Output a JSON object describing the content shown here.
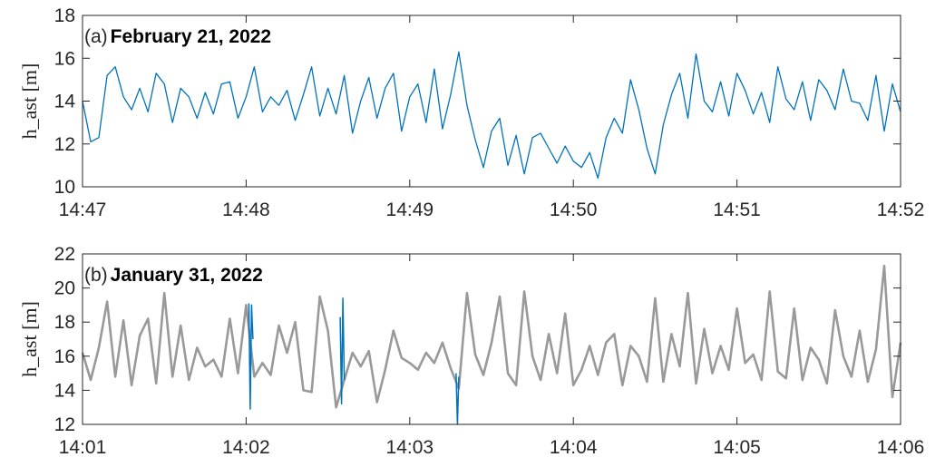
{
  "chart_data": [
    {
      "type": "line",
      "panel_label": "(a)",
      "title": "February 21, 2022",
      "y_label": "h_ast [m]",
      "x": [
        0,
        3,
        6,
        9,
        12,
        15,
        18,
        21,
        24,
        27,
        30,
        33,
        36,
        39,
        42,
        45,
        48,
        51,
        54,
        57,
        60,
        63,
        66,
        69,
        72,
        75,
        78,
        81,
        84,
        87,
        90,
        93,
        96,
        99,
        102,
        105,
        108,
        111,
        114,
        117,
        120,
        123,
        126,
        129,
        132,
        135,
        138,
        141,
        144,
        147,
        150,
        153,
        156,
        159,
        162,
        165,
        168,
        171,
        174,
        177,
        180,
        183,
        186,
        189,
        192,
        195,
        198,
        201,
        204,
        207,
        210,
        213,
        216,
        219,
        222,
        225,
        228,
        231,
        234,
        237,
        240,
        243,
        246,
        249,
        252,
        255,
        258,
        261,
        264,
        267,
        270,
        273,
        276,
        279,
        282,
        285,
        288,
        291,
        294,
        297,
        300
      ],
      "series": [
        {
          "color": "#0072bd",
          "width": 1.3,
          "values": [
            14.0,
            12.1,
            12.3,
            15.2,
            15.6,
            14.2,
            13.6,
            14.6,
            13.5,
            15.3,
            14.8,
            13.0,
            14.6,
            14.2,
            13.2,
            14.4,
            13.4,
            14.8,
            14.9,
            13.2,
            14.2,
            15.6,
            13.5,
            14.2,
            13.8,
            14.5,
            13.1,
            14.3,
            15.6,
            13.3,
            14.6,
            13.4,
            15.2,
            12.5,
            14.0,
            15.1,
            13.2,
            14.6,
            15.3,
            12.6,
            14.2,
            14.8,
            13.0,
            15.5,
            12.7,
            14.3,
            16.3,
            13.8,
            12.2,
            10.9,
            12.6,
            13.2,
            11.0,
            12.4,
            10.6,
            12.3,
            12.5,
            11.8,
            11.1,
            11.9,
            11.2,
            10.9,
            11.6,
            10.4,
            12.3,
            13.2,
            12.5,
            15.0,
            13.6,
            11.8,
            10.6,
            12.9,
            14.3,
            15.3,
            13.2,
            16.2,
            14.0,
            13.5,
            14.9,
            13.3,
            15.3,
            14.5,
            13.4,
            14.4,
            13.0,
            15.6,
            14.1,
            13.6,
            14.9,
            13.1,
            15.0,
            14.5,
            13.6,
            15.5,
            14.0,
            13.9,
            13.1,
            15.2,
            12.6,
            14.8,
            13.5
          ]
        }
      ],
      "xlim": [
        0,
        300
      ],
      "xticks": [
        {
          "value": 0,
          "label": "14:47"
        },
        {
          "value": 60,
          "label": "14:48"
        },
        {
          "value": 120,
          "label": "14:49"
        },
        {
          "value": 180,
          "label": "14:50"
        },
        {
          "value": 240,
          "label": "14:51"
        },
        {
          "value": 300,
          "label": "14:52"
        }
      ],
      "ylim": [
        10,
        18
      ],
      "yticks": [
        10,
        12,
        14,
        16,
        18
      ]
    },
    {
      "type": "line",
      "panel_label": "(b)",
      "title": "January 31, 2022",
      "y_label": "h_ast [m]",
      "x": [
        0,
        3,
        6,
        9,
        12,
        15,
        18,
        21,
        24,
        27,
        30,
        33,
        36,
        39,
        42,
        45,
        48,
        51,
        54,
        57,
        60,
        63,
        66,
        69,
        72,
        75,
        78,
        81,
        84,
        87,
        90,
        93,
        96,
        99,
        102,
        105,
        108,
        111,
        114,
        117,
        120,
        123,
        126,
        129,
        132,
        135,
        138,
        141,
        144,
        147,
        150,
        153,
        156,
        159,
        162,
        165,
        168,
        171,
        174,
        177,
        180,
        183,
        186,
        189,
        192,
        195,
        198,
        201,
        204,
        207,
        210,
        213,
        216,
        219,
        222,
        225,
        228,
        231,
        234,
        237,
        240,
        243,
        246,
        249,
        252,
        255,
        258,
        261,
        264,
        267,
        270,
        273,
        276,
        279,
        282,
        285,
        288,
        291,
        294,
        297,
        300
      ],
      "series": [
        {
          "color": "#999999",
          "width": 2.6,
          "values": [
            16.2,
            14.6,
            16.5,
            19.2,
            14.8,
            18.1,
            14.3,
            17.2,
            18.2,
            14.4,
            19.7,
            14.8,
            17.8,
            14.6,
            16.5,
            15.4,
            15.8,
            14.8,
            18.2,
            15.0,
            19.0,
            14.8,
            15.6,
            14.9,
            17.8,
            16.2,
            18.0,
            14.0,
            13.9,
            19.5,
            17.5,
            13.0,
            14.6,
            16.2,
            15.4,
            16.3,
            13.3,
            15.2,
            17.5,
            15.9,
            15.6,
            15.2,
            16.2,
            15.6,
            16.8,
            15.3,
            14.1,
            19.7,
            16.1,
            14.9,
            16.8,
            19.5,
            15.0,
            14.3,
            19.8,
            16.0,
            14.6,
            17.3,
            15.0,
            18.5,
            14.3,
            15.2,
            16.6,
            14.9,
            16.8,
            17.3,
            14.3,
            16.6,
            16.0,
            14.5,
            19.4,
            14.5,
            17.3,
            15.4,
            19.7,
            14.4,
            17.6,
            15.0,
            16.6,
            15.2,
            18.8,
            15.6,
            16.1,
            14.6,
            19.8,
            15.1,
            14.7,
            18.8,
            14.6,
            16.5,
            15.8,
            14.4,
            18.7,
            16.0,
            14.8,
            17.5,
            14.5,
            16.4,
            21.3,
            13.6,
            16.8
          ]
        },
        {
          "color": "#0072bd",
          "width": 1.5,
          "x": [
            61,
            61.5,
            62,
            62.5,
            63,
            94.5,
            95,
            95.5,
            96,
            97,
            137,
            137.5,
            138
          ],
          "values": [
            19.1,
            12.9,
            19.0,
            17.0,
            null,
            18.3,
            13.2,
            19.4,
            14.6,
            null,
            15.0,
            12.0,
            14.8
          ]
        }
      ],
      "xlim": [
        0,
        300
      ],
      "xticks": [
        {
          "value": 0,
          "label": "14:01"
        },
        {
          "value": 60,
          "label": "14:02"
        },
        {
          "value": 120,
          "label": "14:03"
        },
        {
          "value": 180,
          "label": "14:04"
        },
        {
          "value": 240,
          "label": "14:05"
        },
        {
          "value": 300,
          "label": "14:06"
        }
      ],
      "ylim": [
        12,
        22
      ],
      "yticks": [
        12,
        14,
        16,
        18,
        20,
        22
      ]
    }
  ]
}
